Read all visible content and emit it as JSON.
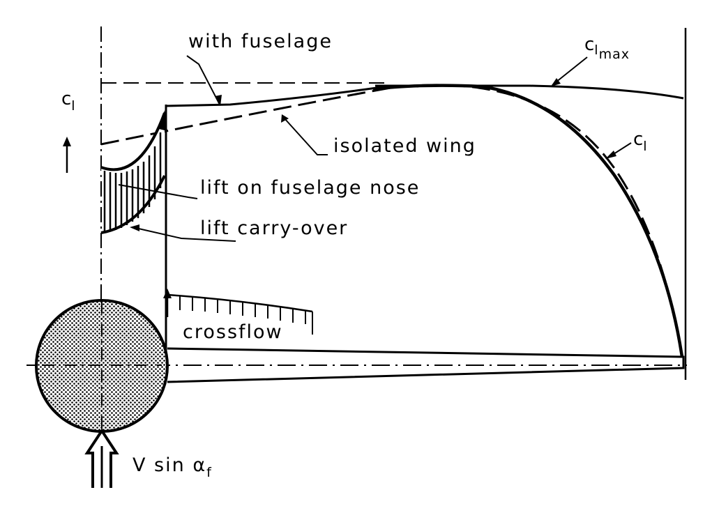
{
  "diagram": {
    "labels": {
      "with_fuselage": "with fuselage",
      "isolated_wing": "isolated wing",
      "lift_on_fuselage_nose": "lift on fuselage nose",
      "lift_carry_over": "lift carry-over",
      "crossflow": "crossflow",
      "cl_axis_symbol": "c",
      "cl_axis_subscript": "l",
      "cl_max_symbol": "c",
      "cl_max_subscript": "l",
      "cl_max_subscript_2": "max",
      "cl_curve_symbol": "c",
      "cl_curve_subscript": "l",
      "velocity_label": "V sin α",
      "velocity_subscript": "f"
    },
    "colors": {
      "ink": "#000000",
      "paper": "#ffffff"
    }
  }
}
